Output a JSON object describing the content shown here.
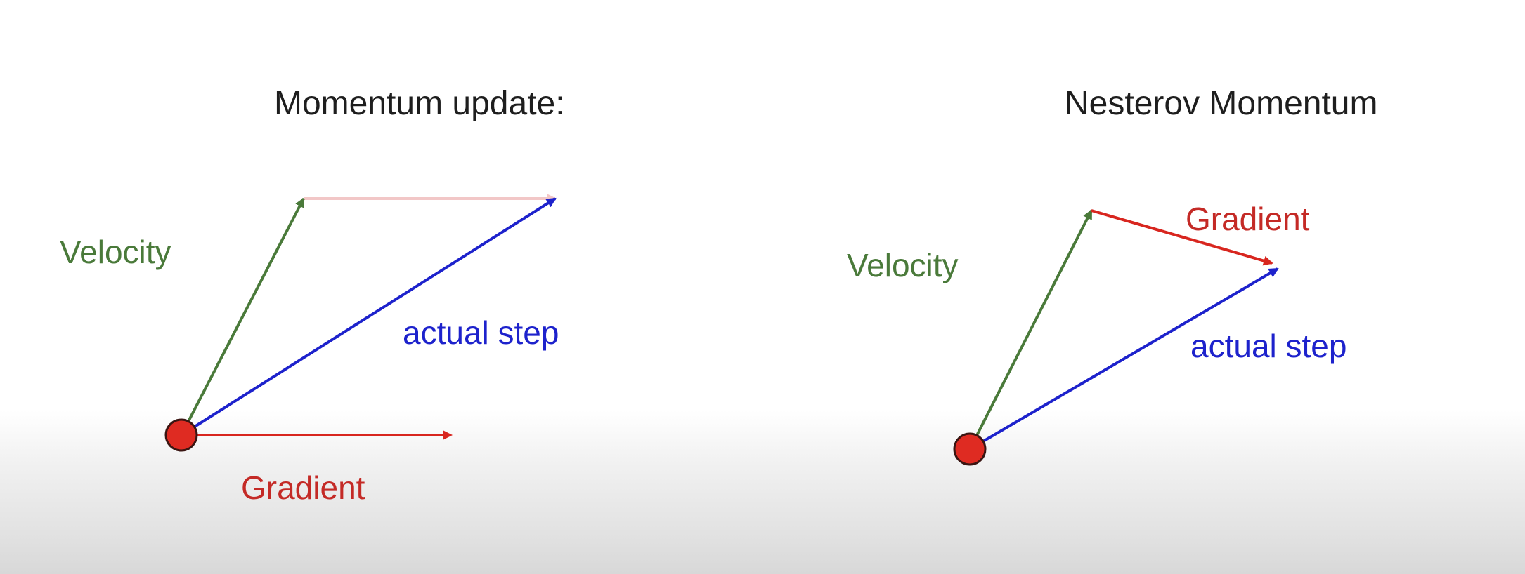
{
  "left_panel": {
    "title": "Momentum update:",
    "velocity_label": "Velocity",
    "actual_step_label": "actual step",
    "gradient_label": "Gradient"
  },
  "right_panel": {
    "title": "Nesterov Momentum",
    "velocity_label": "Velocity",
    "actual_step_label": "actual step",
    "gradient_label": "Gradient"
  },
  "colors": {
    "velocity": "#4a7a3a",
    "actual_step": "#1d22cc",
    "gradient": "#d8261f",
    "ghost_gradient": "#f2c7c7",
    "point": "#df2b22"
  }
}
